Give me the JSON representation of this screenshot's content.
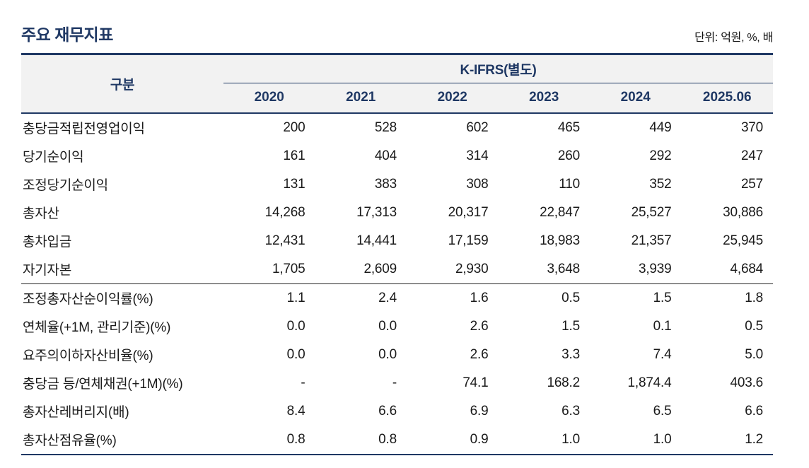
{
  "title": "주요 재무지표",
  "unit_note": "단위: 억원, %, 배",
  "colors": {
    "accent_navy": "#1f3864",
    "header_bg": "#f2f2f2",
    "section_divider": "#262626",
    "body_text": "#1a1a1a"
  },
  "table": {
    "category_header": "구분",
    "group_header": "K-IFRS(별도)",
    "years": [
      "2020",
      "2021",
      "2022",
      "2023",
      "2024",
      "2025.06"
    ],
    "rows": [
      {
        "label": "충당금적립전영업이익",
        "values": [
          "200",
          "528",
          "602",
          "465",
          "449",
          "370"
        ]
      },
      {
        "label": "당기순이익",
        "values": [
          "161",
          "404",
          "314",
          "260",
          "292",
          "247"
        ]
      },
      {
        "label": "조정당기순이익",
        "values": [
          "131",
          "383",
          "308",
          "110",
          "352",
          "257"
        ]
      },
      {
        "label": "총자산",
        "values": [
          "14,268",
          "17,313",
          "20,317",
          "22,847",
          "25,527",
          "30,886"
        ]
      },
      {
        "label": "총차입금",
        "values": [
          "12,431",
          "14,441",
          "17,159",
          "18,983",
          "21,357",
          "25,945"
        ]
      },
      {
        "label": "자기자본",
        "values": [
          "1,705",
          "2,609",
          "2,930",
          "3,648",
          "3,939",
          "4,684"
        ]
      },
      {
        "label": "조정총자산순이익률(%)",
        "values": [
          "1.1",
          "2.4",
          "1.6",
          "0.5",
          "1.5",
          "1.8"
        ]
      },
      {
        "label": "연체율(+1M, 관리기준)(%)",
        "values": [
          "0.0",
          "0.0",
          "2.6",
          "1.5",
          "0.1",
          "0.5"
        ]
      },
      {
        "label": "요주의이하자산비율(%)",
        "values": [
          "0.0",
          "0.0",
          "2.6",
          "3.3",
          "7.4",
          "5.0"
        ]
      },
      {
        "label": "충당금 등/연체채권(+1M)(%)",
        "values": [
          "-",
          "-",
          "74.1",
          "168.2",
          "1,874.4",
          "403.6"
        ]
      },
      {
        "label": "총자산레버리지(배)",
        "values": [
          "8.4",
          "6.6",
          "6.9",
          "6.3",
          "6.5",
          "6.6"
        ]
      },
      {
        "label": "총자산점유율(%)",
        "values": [
          "0.8",
          "0.8",
          "0.9",
          "1.0",
          "1.0",
          "1.2"
        ]
      }
    ]
  }
}
